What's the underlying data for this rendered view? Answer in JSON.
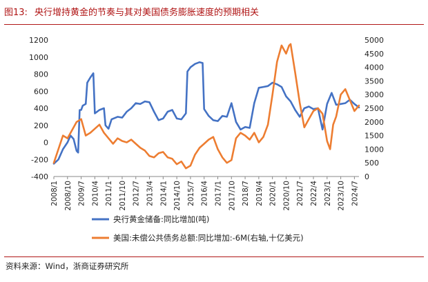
{
  "figure": {
    "number": "图13:",
    "title": "央行增持黄金的节奏与其对美国债务膨胀速度的预期相关",
    "source": "资料来源：Wind，浙商证券研究所"
  },
  "colors": {
    "accent": "#b01515",
    "series1": "#4472c4",
    "series2": "#ed7d31"
  },
  "chart_data": {
    "type": "line",
    "title": "",
    "x_tick_labels": [
      "2008/1",
      "2008/10",
      "2009/7",
      "2010/4",
      "2011/1",
      "2011/10",
      "2012/7",
      "2013/4",
      "2014/1",
      "2014/10",
      "2015/7",
      "2016/4",
      "2017/1",
      "2017/10",
      "2018/7",
      "2019/4",
      "2020/1",
      "2020/10",
      "2021/7",
      "2022/4",
      "2023/1",
      "2023/10",
      "2024/7"
    ],
    "x_range": [
      "2008/1",
      "2024/10"
    ],
    "y_left": {
      "range": [
        -400,
        1200
      ],
      "ticks": [
        -400,
        -200,
        0,
        200,
        400,
        600,
        800,
        1000,
        1200
      ]
    },
    "y_right": {
      "range": [
        0,
        5000
      ],
      "ticks": [
        0,
        500,
        1000,
        1500,
        2000,
        2500,
        3000,
        3500,
        4000,
        4500,
        5000
      ]
    },
    "grid": false,
    "legend_position": "bottom",
    "series": [
      {
        "name": "央行黄金储备:同比增加(吨)",
        "axis": "left",
        "points": [
          [
            "2008/1",
            -250
          ],
          [
            "2008/4",
            -200
          ],
          [
            "2008/7",
            -80
          ],
          [
            "2008/10",
            0
          ],
          [
            "2008/12",
            80
          ],
          [
            "2009/2",
            40
          ],
          [
            "2009/4",
            -100
          ],
          [
            "2009/5",
            -120
          ],
          [
            "2009/6",
            380
          ],
          [
            "2009/7",
            380
          ],
          [
            "2009/8",
            430
          ],
          [
            "2009/10",
            450
          ],
          [
            "2009/11",
            700
          ],
          [
            "2010/1",
            760
          ],
          [
            "2010/3",
            810
          ],
          [
            "2010/4",
            340
          ],
          [
            "2010/7",
            380
          ],
          [
            "2010/10",
            400
          ],
          [
            "2010/11",
            200
          ],
          [
            "2011/1",
            160
          ],
          [
            "2011/3",
            270
          ],
          [
            "2011/7",
            300
          ],
          [
            "2011/10",
            290
          ],
          [
            "2012/1",
            360
          ],
          [
            "2012/4",
            400
          ],
          [
            "2012/7",
            460
          ],
          [
            "2012/10",
            450
          ],
          [
            "2013/1",
            480
          ],
          [
            "2013/4",
            470
          ],
          [
            "2013/7",
            360
          ],
          [
            "2013/10",
            260
          ],
          [
            "2014/1",
            280
          ],
          [
            "2014/4",
            360
          ],
          [
            "2014/7",
            380
          ],
          [
            "2014/10",
            280
          ],
          [
            "2015/1",
            270
          ],
          [
            "2015/4",
            340
          ],
          [
            "2015/5",
            830
          ],
          [
            "2015/7",
            880
          ],
          [
            "2015/10",
            920
          ],
          [
            "2016/1",
            940
          ],
          [
            "2016/3",
            930
          ],
          [
            "2016/4",
            390
          ],
          [
            "2016/7",
            310
          ],
          [
            "2016/10",
            260
          ],
          [
            "2017/1",
            250
          ],
          [
            "2017/4",
            310
          ],
          [
            "2017/7",
            300
          ],
          [
            "2017/10",
            460
          ],
          [
            "2018/1",
            240
          ],
          [
            "2018/4",
            150
          ],
          [
            "2018/7",
            180
          ],
          [
            "2018/10",
            170
          ],
          [
            "2019/1",
            460
          ],
          [
            "2019/4",
            640
          ],
          [
            "2019/7",
            650
          ],
          [
            "2019/10",
            660
          ],
          [
            "2020/1",
            700
          ],
          [
            "2020/4",
            680
          ],
          [
            "2020/7",
            650
          ],
          [
            "2020/10",
            540
          ],
          [
            "2021/1",
            480
          ],
          [
            "2021/4",
            380
          ],
          [
            "2021/7",
            300
          ],
          [
            "2021/10",
            400
          ],
          [
            "2022/1",
            420
          ],
          [
            "2022/4",
            390
          ],
          [
            "2022/7",
            400
          ],
          [
            "2022/10",
            150
          ],
          [
            "2023/1",
            450
          ],
          [
            "2023/4",
            580
          ],
          [
            "2023/7",
            440
          ],
          [
            "2023/10",
            450
          ],
          [
            "2024/1",
            460
          ],
          [
            "2024/4",
            500
          ],
          [
            "2024/7",
            450
          ],
          [
            "2024/10",
            410
          ]
        ]
      },
      {
        "name": "美国:未偿公共债务总额:同比增加:-6M(右轴,十亿美元)",
        "axis": "right",
        "points": [
          [
            "2008/1",
            500
          ],
          [
            "2008/4",
            1000
          ],
          [
            "2008/7",
            1500
          ],
          [
            "2008/10",
            1400
          ],
          [
            "2009/1",
            1700
          ],
          [
            "2009/4",
            2000
          ],
          [
            "2009/7",
            2100
          ],
          [
            "2009/10",
            1500
          ],
          [
            "2010/1",
            1600
          ],
          [
            "2010/4",
            1750
          ],
          [
            "2010/7",
            1900
          ],
          [
            "2010/10",
            1600
          ],
          [
            "2011/1",
            1400
          ],
          [
            "2011/4",
            1200
          ],
          [
            "2011/7",
            1400
          ],
          [
            "2011/10",
            1300
          ],
          [
            "2012/1",
            1250
          ],
          [
            "2012/4",
            1350
          ],
          [
            "2012/7",
            1200
          ],
          [
            "2012/10",
            1050
          ],
          [
            "2013/1",
            950
          ],
          [
            "2013/4",
            750
          ],
          [
            "2013/7",
            700
          ],
          [
            "2013/10",
            850
          ],
          [
            "2014/1",
            900
          ],
          [
            "2014/4",
            700
          ],
          [
            "2014/7",
            650
          ],
          [
            "2014/10",
            450
          ],
          [
            "2015/1",
            550
          ],
          [
            "2015/4",
            300
          ],
          [
            "2015/7",
            400
          ],
          [
            "2015/10",
            800
          ],
          [
            "2016/1",
            1050
          ],
          [
            "2016/4",
            1200
          ],
          [
            "2016/7",
            1350
          ],
          [
            "2016/10",
            1450
          ],
          [
            "2017/1",
            1000
          ],
          [
            "2017/4",
            700
          ],
          [
            "2017/7",
            500
          ],
          [
            "2017/10",
            600
          ],
          [
            "2018/1",
            1400
          ],
          [
            "2018/4",
            1600
          ],
          [
            "2018/7",
            1500
          ],
          [
            "2018/10",
            1350
          ],
          [
            "2019/1",
            1600
          ],
          [
            "2019/4",
            1250
          ],
          [
            "2019/7",
            1450
          ],
          [
            "2019/10",
            1900
          ],
          [
            "2020/1",
            3000
          ],
          [
            "2020/4",
            4200
          ],
          [
            "2020/7",
            4800
          ],
          [
            "2020/10",
            4500
          ],
          [
            "2020/12",
            4800
          ],
          [
            "2021/1",
            4850
          ],
          [
            "2021/4",
            3800
          ],
          [
            "2021/7",
            2700
          ],
          [
            "2021/10",
            1800
          ],
          [
            "2022/1",
            2100
          ],
          [
            "2022/4",
            2400
          ],
          [
            "2022/7",
            2500
          ],
          [
            "2022/10",
            2300
          ],
          [
            "2023/1",
            1300
          ],
          [
            "2023/3",
            1000
          ],
          [
            "2023/5",
            1900
          ],
          [
            "2023/7",
            2200
          ],
          [
            "2023/10",
            3000
          ],
          [
            "2024/1",
            3200
          ],
          [
            "2024/4",
            2800
          ],
          [
            "2024/7",
            2400
          ],
          [
            "2024/10",
            2600
          ]
        ]
      }
    ]
  }
}
